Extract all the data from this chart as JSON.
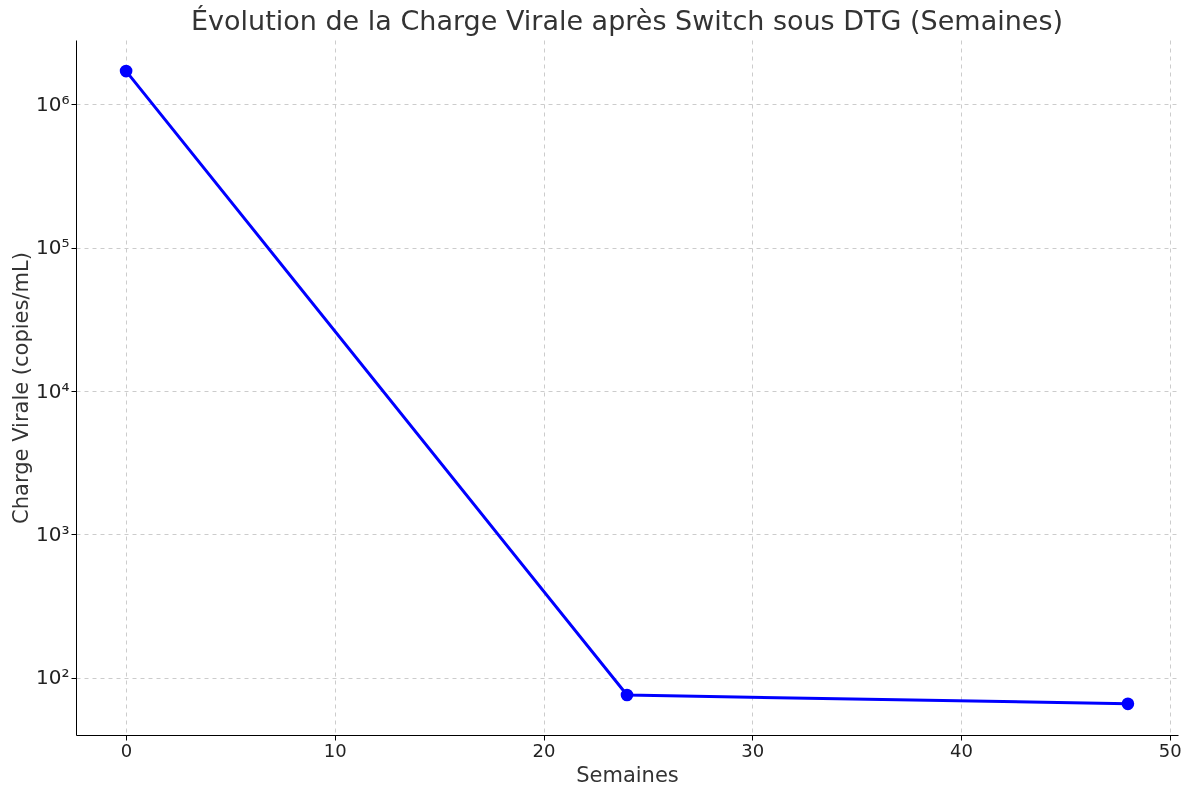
{
  "chart_data": {
    "type": "line",
    "title": "Évolution de la Charge Virale après Switch sous DTG (Semaines)",
    "xlabel": "Semaines",
    "ylabel": "Charge Virale (copies/mL)",
    "x": [
      0,
      24,
      48
    ],
    "series": [
      {
        "color": "#0000ff",
        "values": [
          1700000,
          76,
          66
        ]
      }
    ],
    "xlim": [
      -2.4,
      50.4
    ],
    "xticks": [
      0,
      10,
      20,
      30,
      40,
      50
    ],
    "ylim": [
      40,
      2800000
    ],
    "yticks": [
      {
        "value": 100,
        "label": "10²"
      },
      {
        "value": 1000,
        "label": "10³"
      },
      {
        "value": 10000,
        "label": "10⁴"
      },
      {
        "value": 100000,
        "label": "10⁵"
      },
      {
        "value": 1000000,
        "label": "10⁶"
      }
    ],
    "log": "y",
    "grid": true,
    "marker": "circle",
    "line_style": "solid"
  }
}
